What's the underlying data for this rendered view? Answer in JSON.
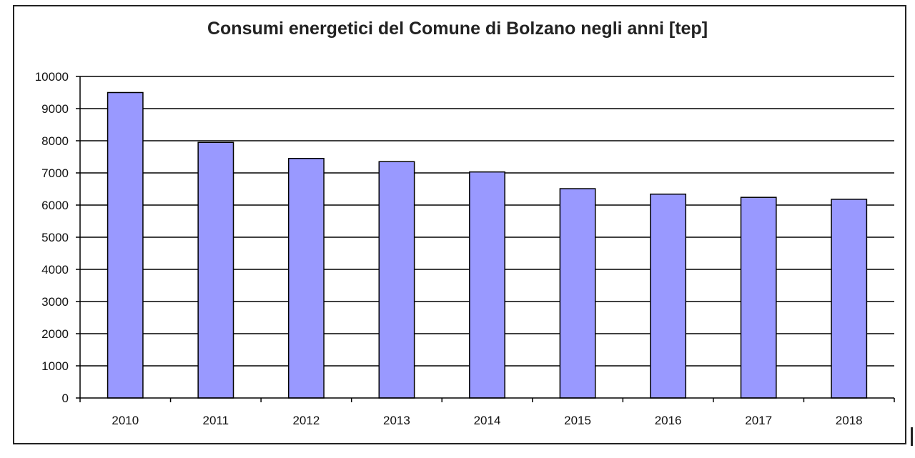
{
  "chart_data": {
    "type": "bar",
    "title": "Consumi energetici del Comune di Bolzano negli anni [tep]",
    "xlabel": "",
    "ylabel": "",
    "categories": [
      "2010",
      "2011",
      "2012",
      "2013",
      "2014",
      "2015",
      "2016",
      "2017",
      "2018"
    ],
    "values": [
      9500,
      7950,
      7450,
      7350,
      7030,
      6510,
      6340,
      6240,
      6180
    ],
    "ylim": [
      0,
      10000
    ],
    "yticks": [
      "0",
      "1000",
      "2000",
      "3000",
      "4000",
      "5000",
      "6000",
      "7000",
      "8000",
      "9000",
      "10000"
    ],
    "grid": true,
    "legend": "none",
    "bar_color": "#9999ff",
    "bar_edge_color": "#000000"
  }
}
